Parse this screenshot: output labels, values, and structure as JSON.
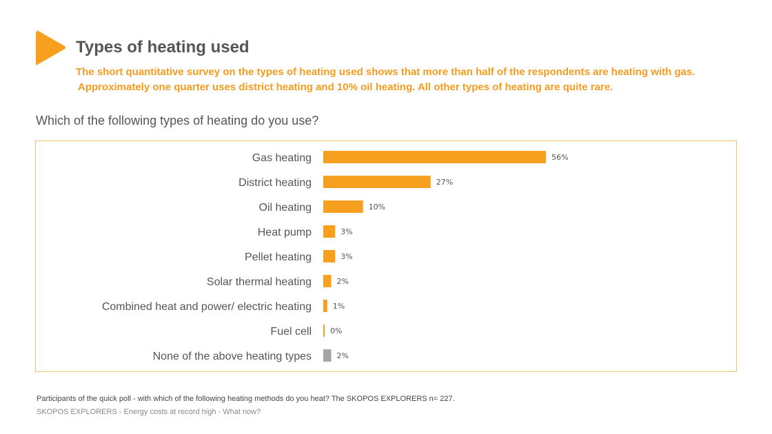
{
  "header": {
    "title": "Types of heating used",
    "summary_lines": [
      "The short quantitative survey on the types of heating used shows that more than half of the respondents are heating with gas.",
      "Approximately one quarter uses district heating and 10% oil heating. All other types of heating are quite rare."
    ],
    "logo_icon": "orange-play-triangle"
  },
  "colors": {
    "accent": "#f7a020",
    "gray_bar": "#a6a6a6",
    "text": "#555555"
  },
  "chart_data": {
    "type": "bar",
    "orientation": "horizontal",
    "title": "Which of the following types of heating do you use?",
    "categories": [
      "Gas heating",
      "District heating",
      "Oil heating",
      "Heat pump",
      "Pellet heating",
      "Solar thermal heating",
      "Combined heat and power/ electric heating",
      "Fuel cell",
      "None of the above heating types"
    ],
    "values": [
      56,
      27,
      10,
      3,
      3,
      2,
      1,
      0,
      2
    ],
    "labels": [
      "56%",
      "27%",
      "10%",
      "3%",
      "3%",
      "2%",
      "1%",
      "0%",
      "2%"
    ],
    "bar_colors": [
      "#f7a020",
      "#f7a020",
      "#f7a020",
      "#f7a020",
      "#f7a020",
      "#f7a020",
      "#f7a020",
      "#f7a020",
      "#a6a6a6"
    ],
    "unit": "%",
    "grid": false,
    "legend": "none"
  },
  "footer": {
    "note": "Participants of the quick poll - with which of the following heating methods do you heat? The SKOPOS EXPLORERS n= 227.",
    "source": "SKOPOS EXPLORERS - Energy costs at record high - What now?"
  }
}
